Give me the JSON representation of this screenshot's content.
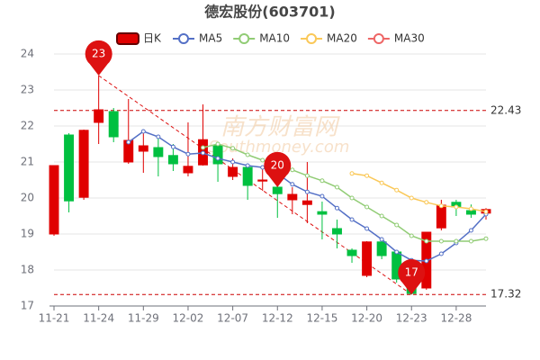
{
  "chart_data": {
    "type": "candlestick",
    "title": "德宏股份(603701)",
    "watermark": [
      "南方财富网",
      "Southmoney.com"
    ],
    "categories": [
      "11-21",
      null,
      null,
      "11-24",
      null,
      null,
      "11-29",
      null,
      null,
      "12-02",
      null,
      null,
      "12-07",
      null,
      null,
      "12-12",
      null,
      null,
      "12-15",
      null,
      null,
      "12-20",
      null,
      null,
      "12-23",
      null,
      null,
      "12-28",
      null,
      null
    ],
    "candles": {
      "name": "日K",
      "up_color": "#e00000",
      "down_color": "#00c040",
      "open": [
        19.0,
        21.75,
        20.02,
        22.1,
        22.4,
        21.0,
        21.3,
        21.4,
        21.18,
        20.7,
        20.92,
        21.45,
        20.6,
        20.85,
        20.47,
        20.3,
        19.95,
        19.82,
        19.62,
        19.15,
        18.55,
        17.85,
        18.78,
        18.5,
        17.85,
        17.5,
        19.17,
        19.88,
        19.65,
        19.58
      ],
      "close": [
        20.9,
        19.92,
        21.88,
        22.45,
        21.7,
        21.6,
        21.45,
        21.15,
        20.95,
        20.88,
        21.62,
        20.95,
        20.85,
        20.35,
        20.5,
        20.12,
        20.1,
        19.92,
        19.55,
        19.0,
        18.4,
        18.78,
        18.4,
        17.75,
        17.35,
        19.05,
        19.8,
        19.75,
        19.55,
        19.68
      ],
      "high": [
        20.9,
        21.8,
        21.9,
        23.4,
        22.5,
        22.75,
        21.9,
        21.65,
        21.5,
        22.1,
        22.6,
        21.5,
        21.1,
        20.95,
        20.8,
        20.6,
        20.3,
        21.0,
        19.9,
        19.4,
        18.6,
        18.8,
        18.85,
        18.55,
        17.95,
        19.05,
        19.95,
        19.95,
        19.82,
        19.72
      ],
      "low": [
        18.95,
        19.6,
        19.95,
        21.5,
        21.55,
        20.95,
        20.7,
        20.6,
        20.75,
        20.6,
        20.9,
        20.45,
        20.5,
        19.95,
        20.2,
        19.45,
        19.55,
        19.3,
        18.85,
        18.6,
        18.2,
        17.8,
        18.3,
        17.65,
        17.32,
        17.45,
        19.1,
        19.5,
        19.45,
        19.4
      ]
    },
    "series": [
      {
        "name": "MA5",
        "color": "#5470c6",
        "values": [
          null,
          null,
          null,
          null,
          null,
          21.55,
          21.85,
          21.7,
          21.42,
          21.22,
          21.25,
          21.1,
          21.0,
          20.9,
          20.85,
          20.68,
          20.38,
          20.17,
          20.05,
          19.72,
          19.4,
          19.15,
          18.85,
          18.5,
          18.27,
          18.25,
          18.45,
          18.75,
          19.1,
          19.55
        ]
      },
      {
        "name": "MA10",
        "color": "#91cc75",
        "values": [
          null,
          null,
          null,
          null,
          null,
          null,
          null,
          null,
          null,
          null,
          21.4,
          21.5,
          21.38,
          21.2,
          21.05,
          20.92,
          20.78,
          20.62,
          20.48,
          20.3,
          20.0,
          19.75,
          19.5,
          19.25,
          18.95,
          18.8,
          18.8,
          18.8,
          18.8,
          18.87
        ]
      },
      {
        "name": "MA20",
        "color": "#fac858",
        "values": [
          null,
          null,
          null,
          null,
          null,
          null,
          null,
          null,
          null,
          null,
          null,
          null,
          null,
          null,
          null,
          null,
          null,
          null,
          null,
          null,
          20.68,
          20.62,
          20.42,
          20.22,
          20.0,
          19.88,
          19.78,
          19.75,
          19.7,
          19.62
        ]
      },
      {
        "name": "MA30",
        "color": "#ee6666",
        "values": [
          null,
          null,
          null,
          null,
          null,
          null,
          null,
          null,
          null,
          null,
          null,
          null,
          null,
          null,
          null,
          null,
          null,
          null,
          null,
          null,
          null,
          null,
          null,
          null,
          null,
          null,
          null,
          null,
          null,
          null
        ]
      }
    ],
    "ylim": [
      17,
      24
    ],
    "yticks": [
      17,
      18,
      19,
      20,
      21,
      22,
      23,
      24
    ],
    "grid": true,
    "hlines": [
      22.43,
      17.32
    ],
    "hline_color": "#cc0000",
    "markers": [
      {
        "x": "11-24",
        "value": 23.4,
        "label": "23"
      },
      {
        "x": "12-12",
        "value": 20.3,
        "label": "20"
      },
      {
        "x": "12-23",
        "value": 17.32,
        "label": "17"
      }
    ],
    "marker_color": "#dd1111"
  }
}
